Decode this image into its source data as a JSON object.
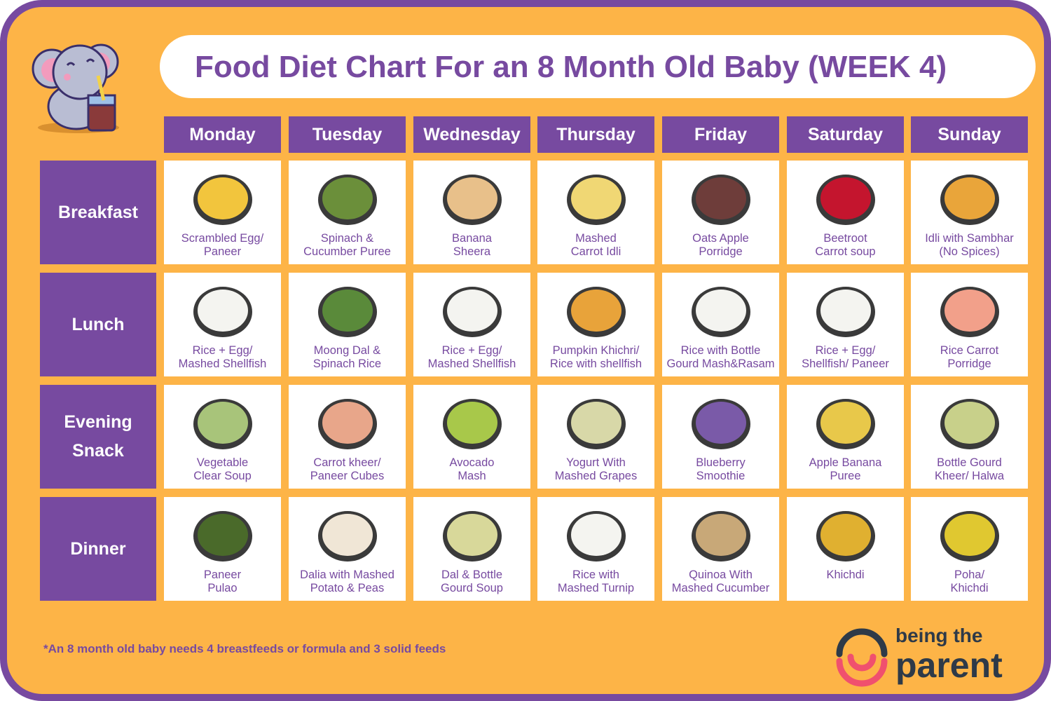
{
  "title": "Food Diet Chart For an 8 Month Old Baby (WEEK 4)",
  "colors": {
    "background": "#fdb447",
    "purple": "#774aa0",
    "logo_dark": "#2e3a48",
    "logo_red": "#f0506e"
  },
  "days": [
    "Monday",
    "Tuesday",
    "Wednesday",
    "Thursday",
    "Friday",
    "Saturday",
    "Sunday"
  ],
  "meals": [
    {
      "label": "Breakfast",
      "items": [
        {
          "name": "Scrambled Egg/\nPaneer",
          "color": "#f2c53d"
        },
        {
          "name": "Spinach &\nCucumber Puree",
          "color": "#6b8f3a"
        },
        {
          "name": "Banana\nSheera",
          "color": "#e8c08a"
        },
        {
          "name": "Mashed\nCarrot Idli",
          "color": "#f0d774"
        },
        {
          "name": "Oats Apple\nPorridge",
          "color": "#6e3d3a"
        },
        {
          "name": "Beetroot\nCarrot soup",
          "color": "#c4152e"
        },
        {
          "name": "Idli with Sambhar\n(No Spices)",
          "color": "#e9a53a"
        }
      ]
    },
    {
      "label": "Lunch",
      "items": [
        {
          "name": "Rice + Egg/\nMashed Shellfish",
          "color": "#f4f4f0"
        },
        {
          "name": "Moong Dal &\nSpinach Rice",
          "color": "#5a8a3a"
        },
        {
          "name": "Rice + Egg/\nMashed Shellfish",
          "color": "#f4f4f0"
        },
        {
          "name": "Pumpkin Khichri/\nRice with shellfish",
          "color": "#e8a33a"
        },
        {
          "name": "Rice with Bottle\nGourd Mash&Rasam",
          "color": "#f4f4f0"
        },
        {
          "name": "Rice + Egg/\nShellfish/ Paneer",
          "color": "#f4f4f0"
        },
        {
          "name": "Rice Carrot\nPorridge",
          "color": "#f2a08a"
        }
      ]
    },
    {
      "label": "Evening\nSnack",
      "items": [
        {
          "name": "Vegetable\nClear Soup",
          "color": "#a8c47a"
        },
        {
          "name": "Carrot kheer/\nPaneer Cubes",
          "color": "#e8a68a"
        },
        {
          "name": "Avocado\nMash",
          "color": "#a8c84a"
        },
        {
          "name": "Yogurt With\nMashed Grapes",
          "color": "#d8d8a8"
        },
        {
          "name": "Blueberry\nSmoothie",
          "color": "#7a5aa8"
        },
        {
          "name": "Apple Banana\nPuree",
          "color": "#e8c84a"
        },
        {
          "name": "Bottle Gourd\nKheer/ Halwa",
          "color": "#c8d08a"
        }
      ]
    },
    {
      "label": "Dinner",
      "items": [
        {
          "name": "Paneer\nPulao",
          "color": "#4a6a2a"
        },
        {
          "name": "Dalia with Mashed\nPotato & Peas",
          "color": "#f0e6d6"
        },
        {
          "name": "Dal & Bottle\nGourd Soup",
          "color": "#d8d89a"
        },
        {
          "name": "Rice with\nMashed Turnip",
          "color": "#f4f4f0"
        },
        {
          "name": "Quinoa With\nMashed Cucumber",
          "color": "#c8a878"
        },
        {
          "name": "Khichdi",
          "color": "#e0b030"
        },
        {
          "name": "Poha/\nKhichdi",
          "color": "#e0c830"
        }
      ]
    }
  ],
  "footnote": "*An 8 month old baby needs 4 breastfeeds or formula and 3 solid feeds",
  "logo": {
    "line1": "being the",
    "line2": "parent"
  }
}
